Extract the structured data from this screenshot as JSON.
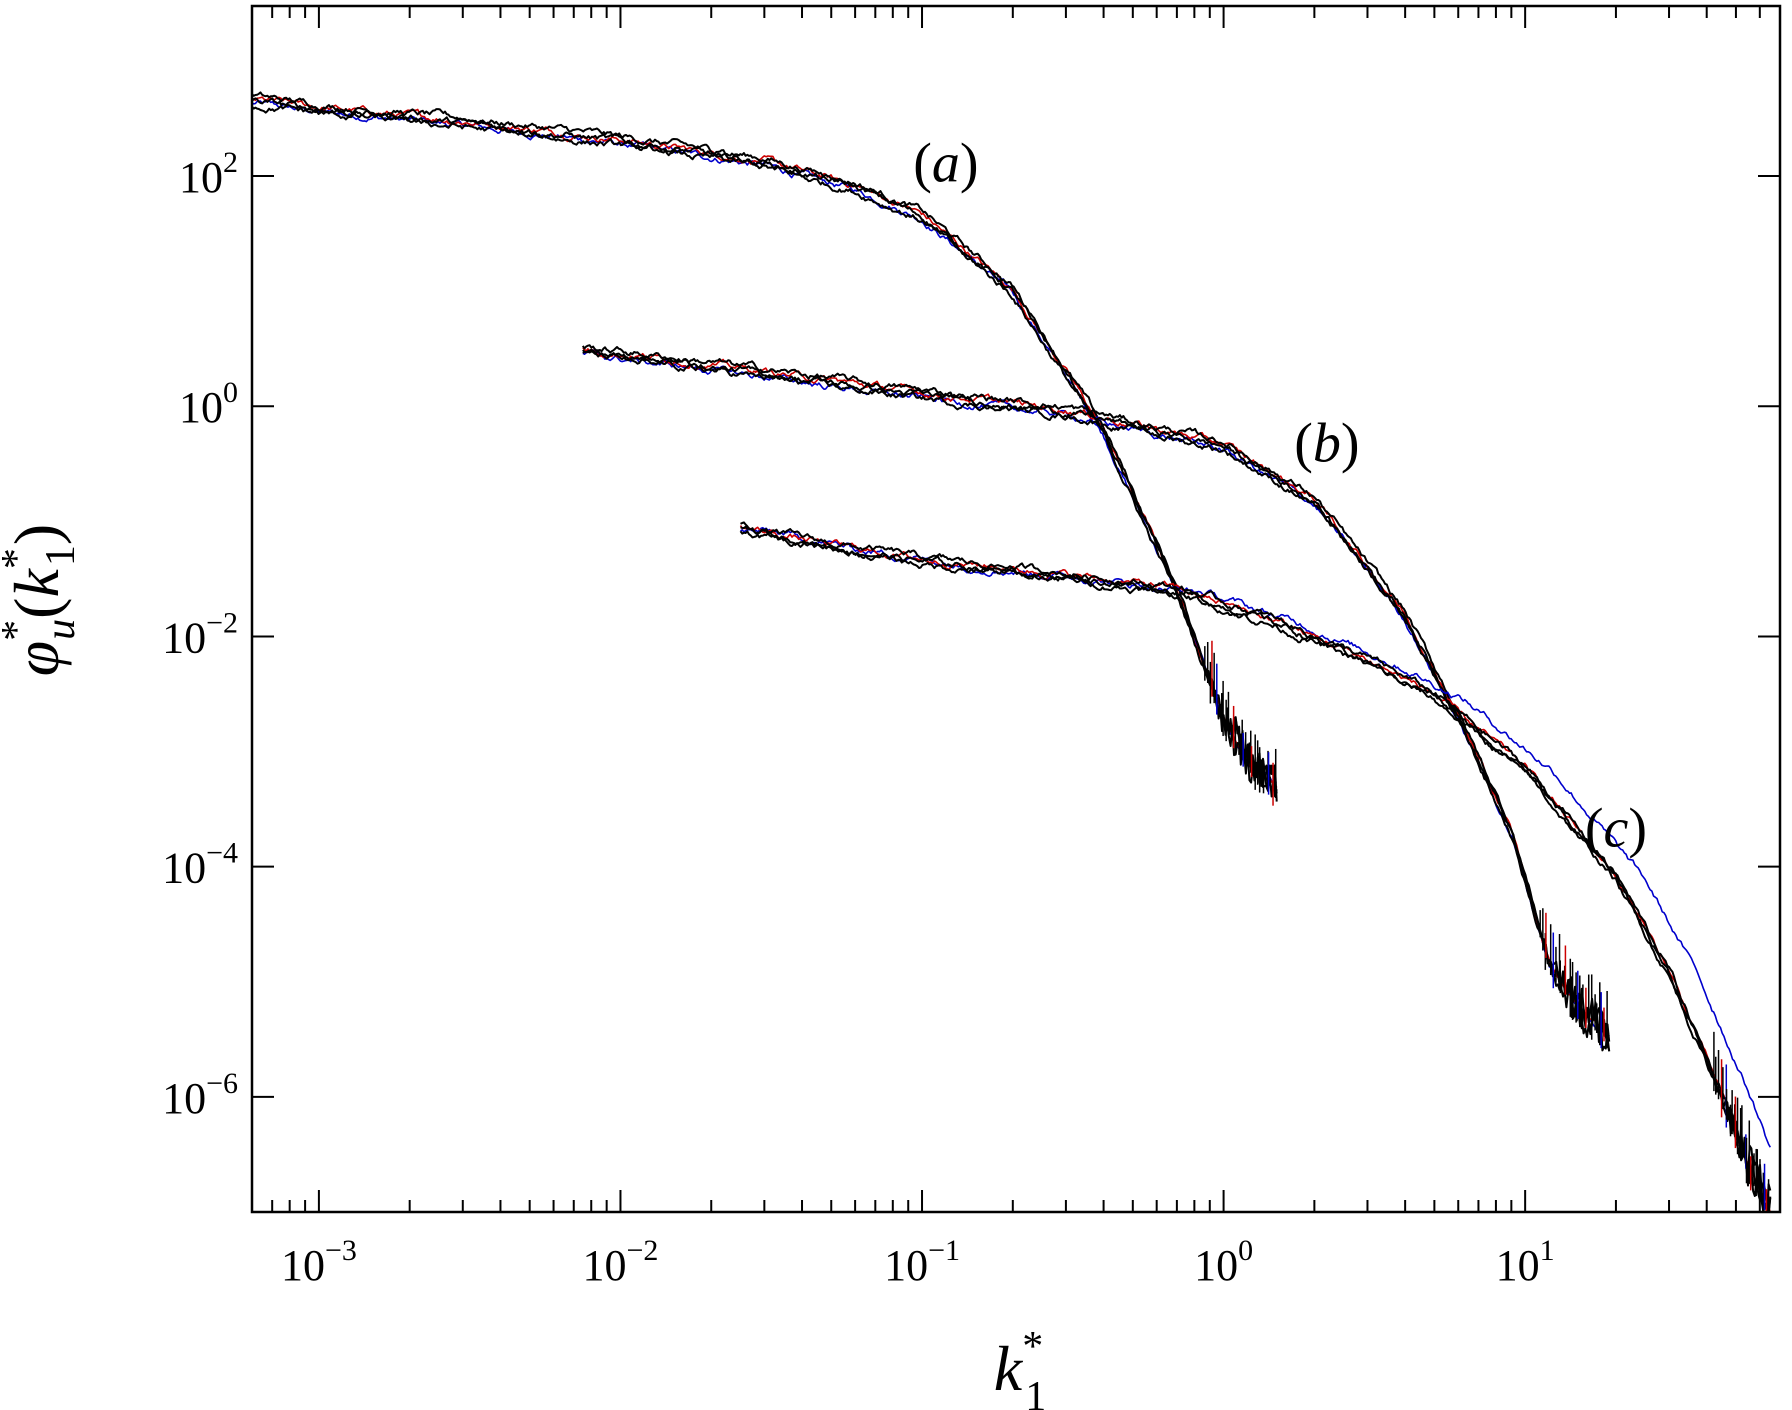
{
  "chart_data": {
    "type": "line",
    "x_scale": "log",
    "y_scale": "log",
    "xlim": [
      0.0006,
      70
    ],
    "ylim": [
      1e-07,
      3000
    ],
    "grid": false,
    "legend": "none",
    "xlabel": {
      "base": "k",
      "sup": "*",
      "sub": "1"
    },
    "ylabel": {
      "base": "φ",
      "sub1": "u",
      "sup1": "*",
      "paren_base": "k",
      "paren_sup": "*",
      "paren_sub": "1"
    },
    "x_ticks": [
      {
        "value": 0.001,
        "base": "10",
        "exp": "−3"
      },
      {
        "value": 0.01,
        "base": "10",
        "exp": "−2"
      },
      {
        "value": 0.1,
        "base": "10",
        "exp": "−1"
      },
      {
        "value": 1,
        "base": "10",
        "exp": "0"
      },
      {
        "value": 10,
        "base": "10",
        "exp": "1"
      }
    ],
    "y_ticks": [
      {
        "value": 100,
        "base": "10",
        "exp": "2"
      },
      {
        "value": 1,
        "base": "10",
        "exp": "0"
      },
      {
        "value": 0.01,
        "base": "10",
        "exp": "−2"
      },
      {
        "value": 0.0001,
        "base": "10",
        "exp": "−4"
      },
      {
        "value": 1e-06,
        "base": "10",
        "exp": "−6"
      }
    ],
    "groups": [
      {
        "id": "a",
        "label": {
          "open": "(",
          "letter": "a",
          "close": ")"
        },
        "label_pos": {
          "x": 0.12,
          "y": 90
        },
        "x_start": 0.0006,
        "x_end": 1.5,
        "x_noisy": 0.85,
        "anchors": [
          [
            0.0006,
            450
          ],
          [
            0.001,
            380
          ],
          [
            0.003,
            290
          ],
          [
            0.01,
            200
          ],
          [
            0.03,
            130
          ],
          [
            0.06,
            80
          ],
          [
            0.1,
            45
          ],
          [
            0.2,
            10
          ],
          [
            0.4,
            0.6
          ],
          [
            0.7,
            0.025
          ],
          [
            1.0,
            0.002
          ],
          [
            1.2,
            0.0008
          ],
          [
            1.5,
            0.0005
          ]
        ],
        "series": [
          {
            "color": "#0000cc",
            "width": 1.6,
            "scale": 0.95,
            "dx": 1.0
          },
          {
            "color": "#cc0000",
            "width": 1.6,
            "scale": 1.04,
            "dx": 1.0
          },
          {
            "color": "#000000",
            "width": 2.0,
            "scale": 1.1,
            "dx": 1.0
          },
          {
            "color": "#000000",
            "width": 2.0,
            "scale": 1.0,
            "dx": 1.0
          },
          {
            "color": "#000000",
            "width": 2.0,
            "scale": 0.92,
            "dx": 1.0
          }
        ]
      },
      {
        "id": "b",
        "label": {
          "open": "(",
          "letter": "b",
          "close": ")"
        },
        "label_pos": {
          "x": 2.2,
          "y": 0.33
        },
        "x_start": 0.0075,
        "x_end": 19,
        "x_noisy": 11,
        "anchors": [
          [
            0.0075,
            3.0
          ],
          [
            0.02,
            2.2
          ],
          [
            0.05,
            1.6
          ],
          [
            0.1,
            1.25
          ],
          [
            0.3,
            0.9
          ],
          [
            1.0,
            0.45
          ],
          [
            2.0,
            0.15
          ],
          [
            4.0,
            0.015
          ],
          [
            6.0,
            0.002
          ],
          [
            9.0,
            0.0002
          ],
          [
            12.0,
            1.5e-05
          ],
          [
            15.0,
            6e-06
          ],
          [
            19.0,
            3.5e-06
          ]
        ],
        "series": [
          {
            "color": "#0000cc",
            "width": 1.6,
            "scale": 0.94,
            "dx": 1.0
          },
          {
            "color": "#cc0000",
            "width": 1.6,
            "scale": 1.05,
            "dx": 1.0
          },
          {
            "color": "#000000",
            "width": 2.0,
            "scale": 1.1,
            "dx": 1.0
          },
          {
            "color": "#000000",
            "width": 2.0,
            "scale": 1.0,
            "dx": 1.0
          },
          {
            "color": "#000000",
            "width": 2.0,
            "scale": 0.93,
            "dx": 1.0
          }
        ]
      },
      {
        "id": "c",
        "label": {
          "open": "(",
          "letter": "c",
          "close": ")"
        },
        "label_pos": {
          "x": 20,
          "y": 0.00015
        },
        "x_start": 0.025,
        "x_end": 65,
        "x_noisy": 42,
        "anchors": [
          [
            0.025,
            0.085
          ],
          [
            0.05,
            0.06
          ],
          [
            0.1,
            0.045
          ],
          [
            0.3,
            0.033
          ],
          [
            0.7,
            0.025
          ],
          [
            1.5,
            0.013
          ],
          [
            3.0,
            0.006
          ],
          [
            5.0,
            0.003
          ],
          [
            10.0,
            0.0007
          ],
          [
            20.0,
            8e-05
          ],
          [
            30.0,
            1.2e-05
          ],
          [
            45.0,
            1e-06
          ],
          [
            55.0,
            2.5e-07
          ],
          [
            65.0,
            1e-07
          ]
        ],
        "series": [
          {
            "color": "#0000cc",
            "width": 1.6,
            "scale": 0.95,
            "dx": 1.25
          },
          {
            "color": "#cc0000",
            "width": 1.6,
            "scale": 1.05,
            "dx": 1.0
          },
          {
            "color": "#000000",
            "width": 2.0,
            "scale": 1.08,
            "dx": 1.0
          },
          {
            "color": "#000000",
            "width": 2.0,
            "scale": 1.0,
            "dx": 1.0
          },
          {
            "color": "#000000",
            "width": 2.0,
            "scale": 0.94,
            "dx": 1.0
          }
        ]
      }
    ]
  }
}
